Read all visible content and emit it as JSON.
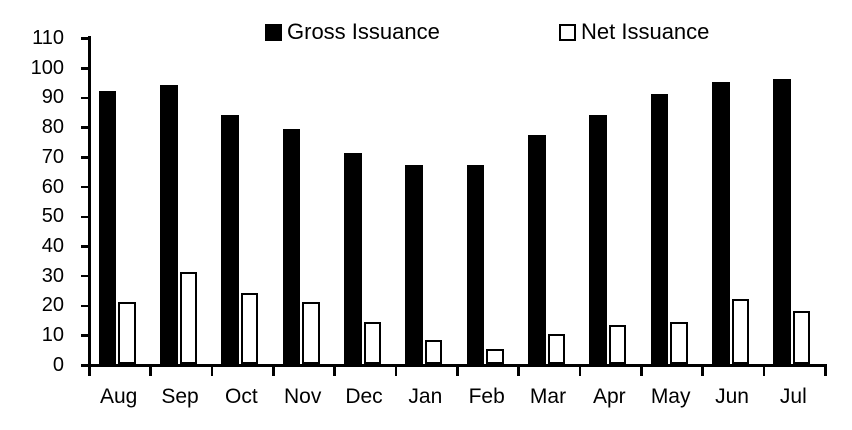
{
  "chart_data": {
    "type": "bar",
    "title": "",
    "xlabel": "",
    "ylabel": "",
    "categories": [
      "Aug",
      "Sep",
      "Oct",
      "Nov",
      "Dec",
      "Jan",
      "Feb",
      "Mar",
      "Apr",
      "May",
      "Jun",
      "Jul"
    ],
    "series": [
      {
        "name": "Gross Issuance",
        "style": "filled",
        "fill_color": "#000000",
        "border_color": "#000000",
        "values": [
          92,
          94,
          84,
          79,
          71,
          67,
          67,
          77,
          84,
          91,
          95,
          96
        ]
      },
      {
        "name": "Net Issuance",
        "style": "outlined",
        "fill_color": "#ffffff",
        "border_color": "#000000",
        "values": [
          21,
          31,
          24,
          21,
          14,
          8,
          5,
          10,
          13,
          14,
          22,
          18
        ]
      }
    ],
    "ylim": [
      0,
      110
    ],
    "ytick_step": 10,
    "ytick_labels": [
      "0",
      "10",
      "20",
      "30",
      "40",
      "50",
      "60",
      "70",
      "80",
      "90",
      "100",
      "110"
    ],
    "grid": false,
    "legend_position": "top",
    "background_color": "#ffffff",
    "axis_color": "#000000"
  }
}
